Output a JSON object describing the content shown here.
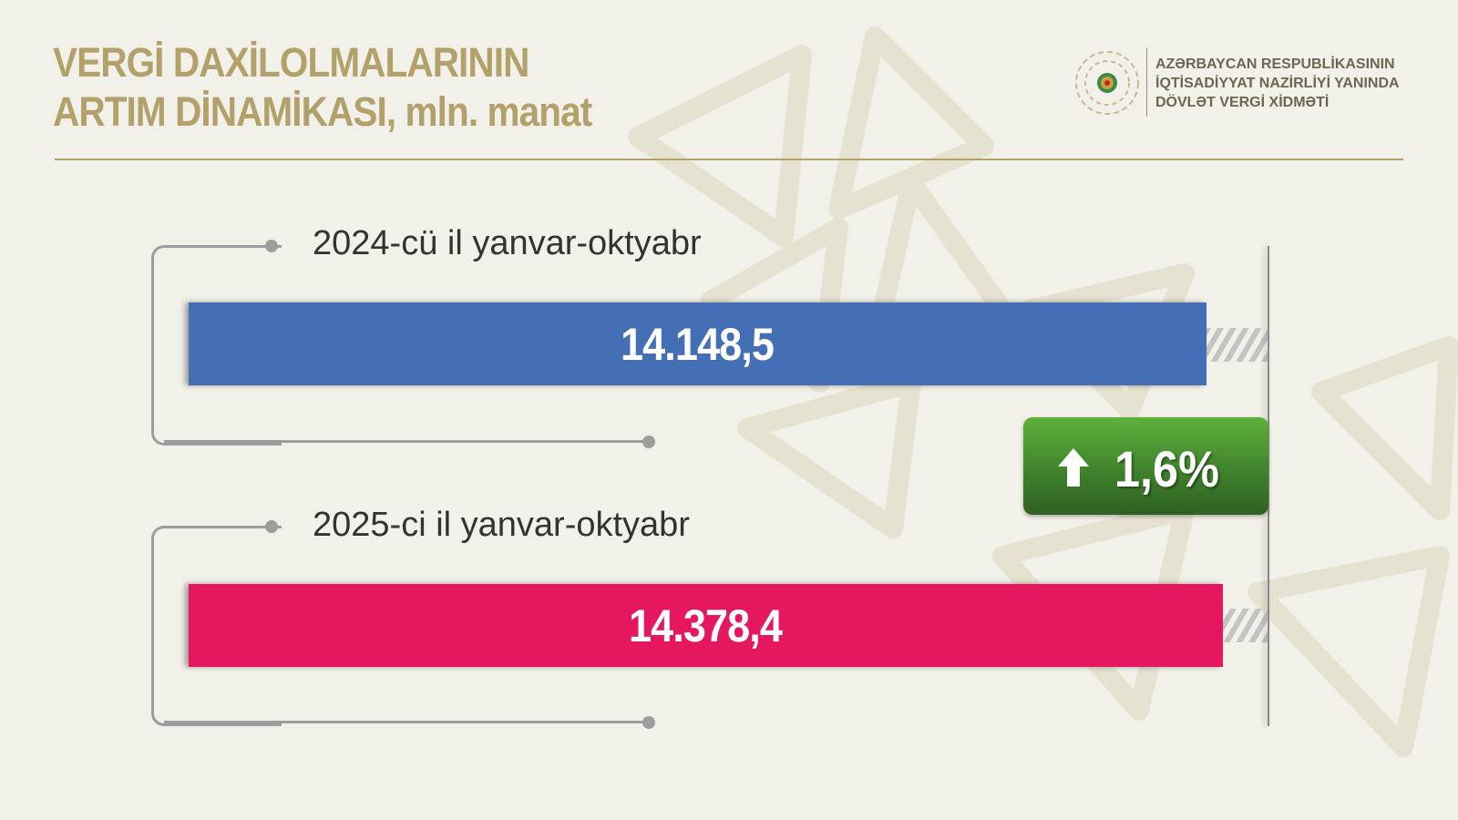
{
  "header": {
    "title_line1": "VERGİ DAXİLOLMALARININ",
    "title_line2": "ARTIM DİNAMİKASI, mln. manat",
    "org_line1": "AZƏRBAYCAN RESPUBLİKASININ",
    "org_line2": "İQTİSADİYYAT NAZİRLİYİ YANINDA",
    "org_line3": "DÖVLƏT VERGİ XİDMƏTİ"
  },
  "chart_data": {
    "type": "bar",
    "orientation": "horizontal",
    "title": "VERGİ DAXİLOLMALARININ ARTIM DİNAMİKASI, mln. manat",
    "categories": [
      "2024-cü il yanvar-oktyabr",
      "2025-ci il yanvar-oktyabr"
    ],
    "values": [
      14148.5,
      14378.4
    ],
    "value_labels": [
      "14.148,5",
      "14.378,4"
    ],
    "colors": [
      "#456fb4",
      "#e5175e"
    ],
    "xlim": [
      0,
      15000
    ],
    "grid": false,
    "change": {
      "label": "1,6%",
      "direction": "up",
      "color": "#4a9a32"
    }
  }
}
